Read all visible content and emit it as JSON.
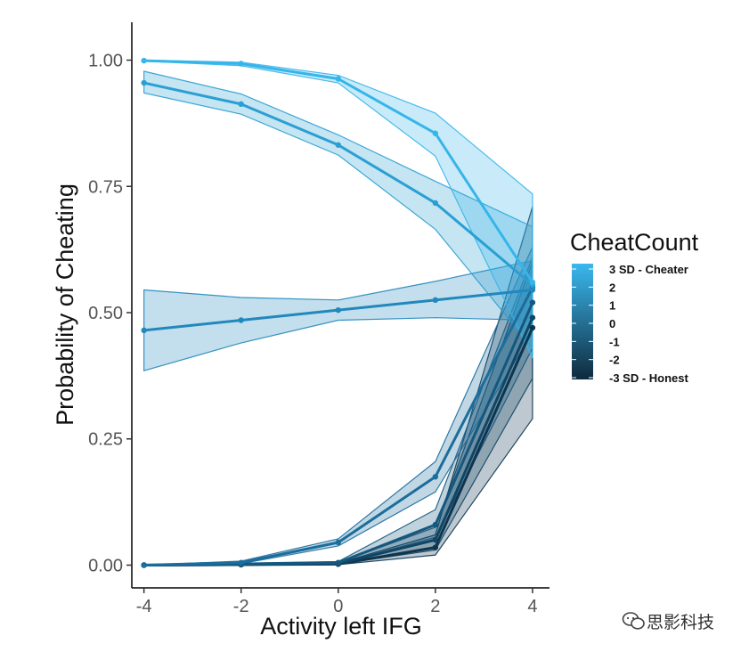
{
  "chart_data": {
    "type": "line",
    "title": "",
    "xlabel": "Activity left IFG",
    "ylabel": "Probability of Cheating",
    "xlim": [
      -4.25,
      4.35
    ],
    "ylim": [
      -0.045,
      1.075
    ],
    "x_ticks": [
      -4,
      -2,
      0,
      2,
      4
    ],
    "x_tick_labels": [
      "-4",
      "-2",
      "0",
      "2",
      "4"
    ],
    "y_ticks": [
      0,
      0.25,
      0.5,
      0.75,
      1.0
    ],
    "y_tick_labels": [
      "0.00",
      "0.25",
      "0.50",
      "0.75",
      "1.00"
    ],
    "grid": false,
    "legend": {
      "title": "CheatCount",
      "placement": "right",
      "labels": [
        "3 SD - Cheater",
        "2",
        "1",
        "0",
        "-1",
        "-2",
        "-3 SD - Honest"
      ],
      "gradient_top": "#3ab8ee",
      "gradient_bottom": "#0f2a3d"
    },
    "x": [
      -4,
      -2,
      0,
      2,
      4
    ],
    "series": [
      {
        "name": "3 SD - Cheater",
        "color": "#36b5ea",
        "values": [
          0.999,
          0.993,
          0.963,
          0.855,
          0.56
        ],
        "lower": [
          0.998,
          0.989,
          0.955,
          0.81,
          0.41
        ],
        "upper": [
          1.0,
          0.996,
          0.97,
          0.895,
          0.735
        ]
      },
      {
        "name": "2",
        "color": "#2a9fd3",
        "values": [
          0.955,
          0.913,
          0.832,
          0.717,
          0.555
        ],
        "lower": [
          0.935,
          0.893,
          0.812,
          0.665,
          0.43
        ],
        "upper": [
          0.978,
          0.933,
          0.852,
          0.76,
          0.67
        ]
      },
      {
        "name": "1",
        "color": "#2287bd",
        "values": [
          0.465,
          0.485,
          0.505,
          0.525,
          0.545
        ],
        "lower": [
          0.385,
          0.44,
          0.485,
          0.49,
          0.485
        ],
        "upper": [
          0.545,
          0.53,
          0.525,
          0.562,
          0.603
        ]
      },
      {
        "name": "0",
        "color": "#1b6d9c",
        "values": [
          0.0,
          0.005,
          0.045,
          0.175,
          0.55
        ],
        "lower": [
          0.0,
          0.003,
          0.038,
          0.145,
          0.46
        ],
        "upper": [
          0.0,
          0.008,
          0.052,
          0.205,
          0.63
        ]
      },
      {
        "name": "-1",
        "color": "#15587f",
        "values": [
          0.0,
          0.002,
          0.005,
          0.08,
          0.52
        ],
        "lower": [
          0.0,
          0.001,
          0.003,
          0.055,
          0.43
        ],
        "upper": [
          0.0,
          0.004,
          0.007,
          0.11,
          0.61
        ]
      },
      {
        "name": "-2",
        "color": "#114564",
        "values": [
          0.0,
          0.001,
          0.003,
          0.05,
          0.49
        ],
        "lower": [
          0.0,
          0.0,
          0.002,
          0.03,
          0.37
        ],
        "upper": [
          0.0,
          0.002,
          0.005,
          0.075,
          0.6
        ]
      },
      {
        "name": "-3 SD - Honest",
        "color": "#0d3550",
        "values": [
          0.0,
          0.001,
          0.002,
          0.035,
          0.47
        ],
        "lower": [
          0.0,
          0.0,
          0.001,
          0.02,
          0.29
        ],
        "upper": [
          0.0,
          0.002,
          0.004,
          0.06,
          0.71
        ]
      }
    ]
  },
  "watermark": {
    "icon": "wechat-icon",
    "text": "思影科技"
  }
}
